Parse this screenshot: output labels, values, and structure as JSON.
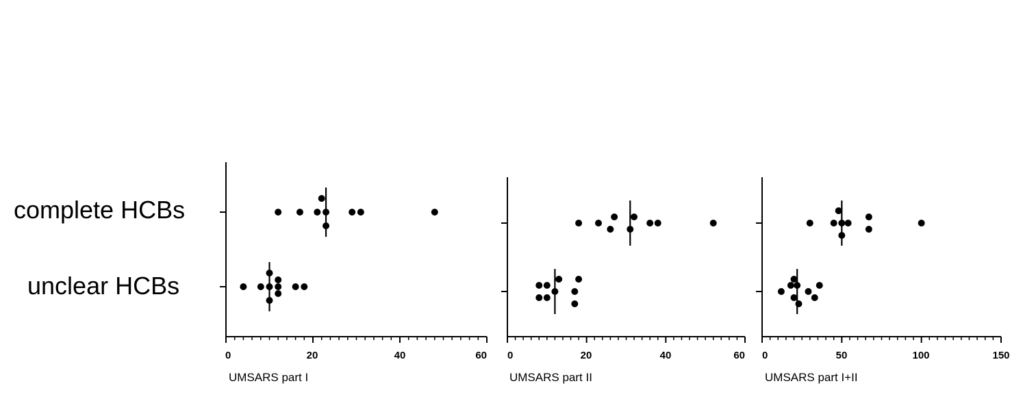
{
  "categories": [
    "complete HCBs",
    "unclear HCBs"
  ],
  "chart_data": [
    {
      "type": "scatter",
      "xlabel": "UMSARS part I",
      "xlim": [
        0,
        60
      ],
      "xticks": [
        "0",
        "20",
        "40",
        "60"
      ],
      "minor_step": 2,
      "categories": [
        "complete HCBs",
        "unclear HCBs"
      ],
      "series": [
        {
          "category": "complete HCBs",
          "median": 23,
          "points": [
            [
              12,
              0
            ],
            [
              17,
              0
            ],
            [
              21,
              0
            ],
            [
              23,
              0
            ],
            [
              29,
              0
            ],
            [
              31,
              0
            ],
            [
              48,
              0
            ],
            [
              22,
              1
            ],
            [
              23,
              -1
            ]
          ]
        },
        {
          "category": "unclear HCBs",
          "median": 10,
          "points": [
            [
              4,
              0
            ],
            [
              8,
              0
            ],
            [
              10,
              0
            ],
            [
              12,
              0
            ],
            [
              16,
              0
            ],
            [
              18,
              0
            ],
            [
              10,
              1
            ],
            [
              12,
              0.5
            ],
            [
              12,
              -0.5
            ],
            [
              10,
              -1
            ]
          ]
        }
      ]
    },
    {
      "type": "scatter",
      "xlabel": "UMSARS part II",
      "xlim": [
        0,
        60
      ],
      "xticks": [
        "0",
        "20",
        "40",
        "60"
      ],
      "minor_step": 2,
      "categories": [
        "complete HCBs",
        "unclear HCBs"
      ],
      "series": [
        {
          "category": "complete HCBs",
          "median": 31,
          "points": [
            [
              18,
              0
            ],
            [
              23,
              0
            ],
            [
              27,
              0.5
            ],
            [
              26,
              -0.5
            ],
            [
              32,
              0.5
            ],
            [
              31,
              -0.5
            ],
            [
              36,
              0
            ],
            [
              38,
              0
            ],
            [
              52,
              0
            ]
          ]
        },
        {
          "category": "unclear HCBs",
          "median": 12,
          "points": [
            [
              8,
              0.5
            ],
            [
              10,
              0.5
            ],
            [
              13,
              1
            ],
            [
              18,
              1
            ],
            [
              12,
              0
            ],
            [
              17,
              0
            ],
            [
              8,
              -0.5
            ],
            [
              10,
              -0.5
            ],
            [
              17,
              -1
            ]
          ]
        }
      ]
    },
    {
      "type": "scatter",
      "xlabel": "UMSARS part I+II",
      "xlim": [
        0,
        150
      ],
      "xticks": [
        "0",
        "50",
        "100",
        "150"
      ],
      "minor_step": 5,
      "categories": [
        "complete HCBs",
        "unclear HCBs"
      ],
      "series": [
        {
          "category": "complete HCBs",
          "median": 50,
          "points": [
            [
              30,
              0
            ],
            [
              45,
              0
            ],
            [
              48,
              1
            ],
            [
              50,
              0
            ],
            [
              54,
              0
            ],
            [
              67,
              0.5
            ],
            [
              67,
              -0.5
            ],
            [
              50,
              -1
            ],
            [
              100,
              0
            ]
          ]
        },
        {
          "category": "unclear HCBs",
          "median": 22,
          "points": [
            [
              20,
              1
            ],
            [
              18,
              0.5
            ],
            [
              22,
              0.5
            ],
            [
              36,
              0.5
            ],
            [
              12,
              0
            ],
            [
              29,
              0
            ],
            [
              20,
              -0.5
            ],
            [
              33,
              -0.5
            ],
            [
              23,
              -1
            ]
          ]
        }
      ]
    }
  ]
}
